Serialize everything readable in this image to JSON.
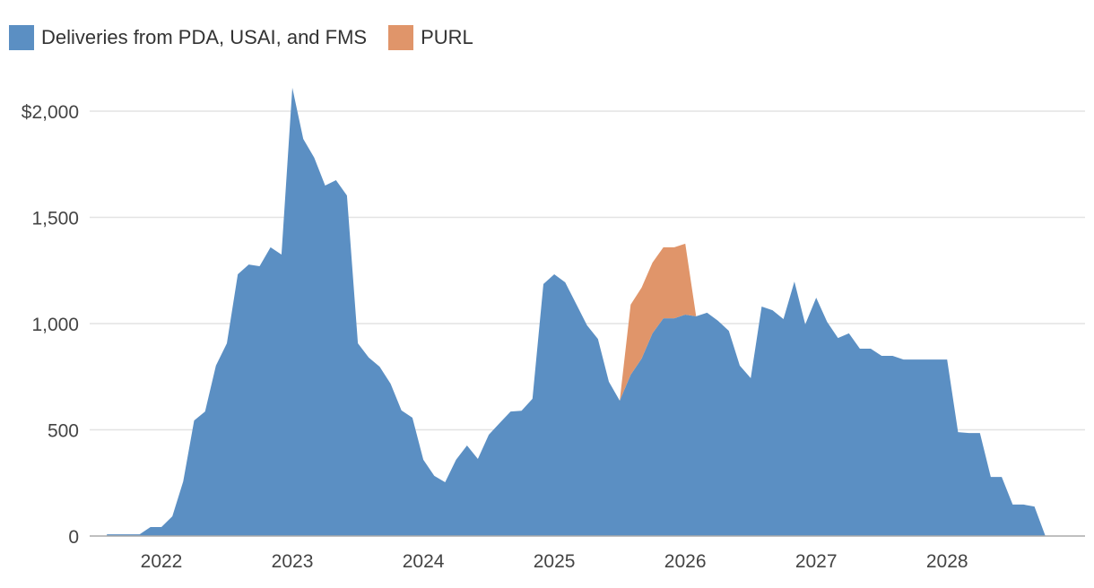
{
  "chart_data": {
    "type": "area",
    "stacked": true,
    "title": "",
    "xlabel": "",
    "ylabel": "",
    "ylim": [
      0,
      2200
    ],
    "y_ticks": [
      0,
      500,
      1000,
      1500,
      2000
    ],
    "y_tick_labels": [
      "0",
      "500",
      "1,000",
      "1,500",
      "$2,000"
    ],
    "x_ticks": [
      "2022-01",
      "2023-01",
      "2024-01",
      "2025-01",
      "2026-01",
      "2027-01",
      "2028-01"
    ],
    "x_tick_labels": [
      "2022",
      "2023",
      "2024",
      "2025",
      "2026",
      "2027",
      "2028"
    ],
    "grid": "horizontal",
    "legend_position": "top-left",
    "x": [
      "2021-08",
      "2021-09",
      "2021-10",
      "2021-11",
      "2021-12",
      "2022-01",
      "2022-02",
      "2022-03",
      "2022-04",
      "2022-05",
      "2022-06",
      "2022-07",
      "2022-08",
      "2022-09",
      "2022-10",
      "2022-11",
      "2022-12",
      "2023-01",
      "2023-02",
      "2023-03",
      "2023-04",
      "2023-05",
      "2023-06",
      "2023-07",
      "2023-08",
      "2023-09",
      "2023-10",
      "2023-11",
      "2023-12",
      "2024-01",
      "2024-02",
      "2024-03",
      "2024-04",
      "2024-05",
      "2024-06",
      "2024-07",
      "2024-08",
      "2024-09",
      "2024-10",
      "2024-11",
      "2024-12",
      "2025-01",
      "2025-02",
      "2025-03",
      "2025-04",
      "2025-05",
      "2025-06",
      "2025-07",
      "2025-08",
      "2025-09",
      "2025-10",
      "2025-11",
      "2025-12",
      "2026-01",
      "2026-02",
      "2026-03",
      "2026-04",
      "2026-05",
      "2026-06",
      "2026-07",
      "2026-08",
      "2026-09",
      "2026-10",
      "2026-11",
      "2026-12",
      "2027-01",
      "2027-02",
      "2027-03",
      "2027-04",
      "2027-05",
      "2027-06",
      "2027-07",
      "2027-08",
      "2027-09",
      "2027-10",
      "2027-11",
      "2027-12",
      "2028-01",
      "2028-02",
      "2028-03",
      "2028-04",
      "2028-05",
      "2028-06",
      "2028-07",
      "2028-08",
      "2028-09",
      "2028-10"
    ],
    "series": [
      {
        "name": "Deliveries from PDA, USAI, and FMS",
        "color": "#5b8fc3",
        "values": [
          8,
          8,
          8,
          8,
          42,
          42,
          93,
          257,
          544,
          586,
          802,
          907,
          1232,
          1278,
          1270,
          1359,
          1325,
          2110,
          1869,
          1781,
          1650,
          1675,
          1603,
          907,
          840,
          797,
          717,
          591,
          557,
          359,
          283,
          253,
          359,
          426,
          363,
          477,
          532,
          586,
          590,
          646,
          1186,
          1232,
          1194,
          1093,
          992,
          928,
          726,
          637,
          759,
          835,
          954,
          1025,
          1025,
          1042,
          1034,
          1051,
          1013,
          966,
          802,
          743,
          1080,
          1063,
          1021,
          1198,
          996,
          1122,
          1008,
          932,
          954,
          882,
          882,
          848,
          848,
          831,
          831,
          831,
          831,
          831,
          489,
          485,
          485,
          278,
          278,
          148,
          148,
          139,
          0
        ]
      },
      {
        "name": "PURL",
        "color": "#e0956a",
        "values": [
          null,
          null,
          null,
          null,
          null,
          null,
          null,
          null,
          null,
          null,
          null,
          null,
          null,
          null,
          null,
          null,
          null,
          null,
          null,
          null,
          null,
          null,
          null,
          null,
          null,
          null,
          null,
          null,
          null,
          null,
          null,
          null,
          null,
          null,
          null,
          null,
          null,
          null,
          null,
          null,
          null,
          null,
          null,
          null,
          null,
          null,
          null,
          0,
          330,
          334,
          333,
          334,
          334,
          334,
          0,
          null,
          null,
          null,
          null,
          null,
          null,
          null,
          null,
          null,
          null,
          null,
          null,
          null,
          null,
          null,
          null,
          null,
          null,
          null,
          null,
          null,
          null,
          null,
          null,
          null,
          null,
          null,
          null,
          null,
          null,
          null,
          null
        ]
      }
    ]
  }
}
